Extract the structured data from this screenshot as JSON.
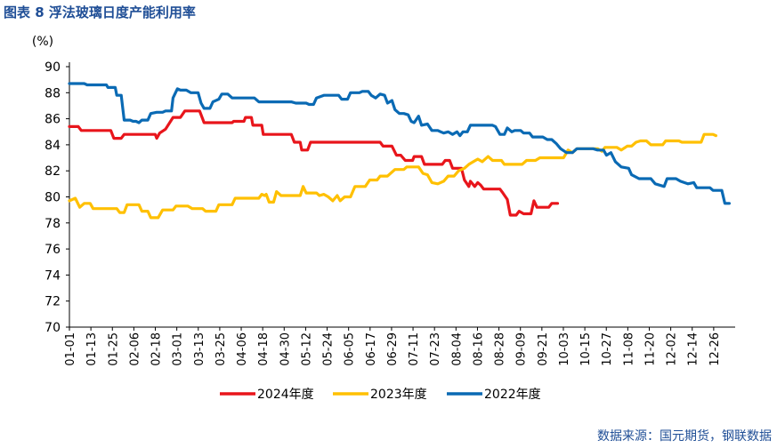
{
  "header": {
    "title": "图表 8  浮法玻璃日度产能利用率"
  },
  "footer": {
    "source": "数据来源：国元期货，钢联数据"
  },
  "chart_data": {
    "type": "line",
    "ylabel": "(%)",
    "ylim": [
      70,
      90
    ],
    "yticks": [
      70,
      72,
      74,
      76,
      78,
      80,
      82,
      84,
      86,
      88,
      90
    ],
    "categories": [
      "01-01",
      "01-13",
      "01-25",
      "02-06",
      "02-18",
      "03-01",
      "03-13",
      "03-25",
      "04-06",
      "04-18",
      "04-30",
      "05-12",
      "05-24",
      "06-05",
      "06-17",
      "06-29",
      "07-11",
      "07-23",
      "08-04",
      "08-16",
      "08-28",
      "09-09",
      "09-21",
      "10-03",
      "10-15",
      "10-27",
      "11-08",
      "11-20",
      "12-02",
      "12-14",
      "12-26"
    ],
    "legend_position": "bottom",
    "grid": false,
    "series": [
      {
        "name": "2024年度",
        "color": "#e8151b",
        "points": [
          [
            0,
            85.4
          ],
          [
            0.6,
            85.4
          ],
          [
            0.8,
            85.1
          ],
          [
            2.8,
            85.1
          ],
          [
            3,
            84.5
          ],
          [
            3.5,
            84.5
          ],
          [
            3.7,
            84.8
          ],
          [
            5.8,
            84.8
          ],
          [
            5.9,
            84.5
          ],
          [
            6.1,
            84.9
          ],
          [
            6.5,
            85.2
          ],
          [
            7,
            86.1
          ],
          [
            7.5,
            86.1
          ],
          [
            7.8,
            86.6
          ],
          [
            8.8,
            86.6
          ],
          [
            9.1,
            85.7
          ],
          [
            11,
            85.7
          ],
          [
            11.1,
            85.8
          ],
          [
            11.8,
            85.8
          ],
          [
            11.9,
            86.1
          ],
          [
            12.3,
            86.1
          ],
          [
            12.4,
            85.5
          ],
          [
            13,
            85.5
          ],
          [
            13.1,
            84.8
          ],
          [
            15,
            84.8
          ],
          [
            15.2,
            84.2
          ],
          [
            15.6,
            84.2
          ],
          [
            15.7,
            83.6
          ],
          [
            16.1,
            83.6
          ],
          [
            16.3,
            84.2
          ],
          [
            21,
            84.2
          ],
          [
            21.2,
            83.9
          ],
          [
            21.8,
            83.9
          ],
          [
            22.1,
            83.2
          ],
          [
            22.4,
            83.2
          ],
          [
            22.7,
            82.8
          ],
          [
            23.2,
            82.8
          ],
          [
            23.3,
            83.1
          ],
          [
            23.8,
            83.1
          ],
          [
            24,
            82.5
          ],
          [
            25.2,
            82.5
          ],
          [
            25.4,
            82.8
          ],
          [
            25.7,
            82.8
          ],
          [
            25.9,
            82.2
          ],
          [
            26.5,
            82.2
          ],
          [
            26.7,
            81.3
          ],
          [
            27,
            80.8
          ],
          [
            27.1,
            81.2
          ],
          [
            27.4,
            80.8
          ],
          [
            27.6,
            81.1
          ],
          [
            27.8,
            80.9
          ],
          [
            28,
            80.6
          ],
          [
            29.1,
            80.6
          ],
          [
            29.3,
            80.3
          ],
          [
            29.6,
            79.8
          ],
          [
            29.8,
            78.6
          ],
          [
            30.2,
            78.6
          ],
          [
            30.4,
            78.9
          ],
          [
            30.7,
            78.7
          ],
          [
            31.2,
            78.7
          ],
          [
            31.4,
            79.7
          ],
          [
            31.6,
            79.2
          ],
          [
            32.4,
            79.2
          ],
          [
            32.6,
            79.5
          ],
          [
            33,
            79.5
          ]
        ]
      },
      {
        "name": "2023年度",
        "color": "#ffc000",
        "points": [
          [
            0,
            79.7
          ],
          [
            0.4,
            79.9
          ],
          [
            0.7,
            79.2
          ],
          [
            1,
            79.5
          ],
          [
            1.4,
            79.5
          ],
          [
            1.6,
            79.1
          ],
          [
            3.2,
            79.1
          ],
          [
            3.4,
            78.8
          ],
          [
            3.7,
            78.8
          ],
          [
            3.9,
            79.4
          ],
          [
            4.7,
            79.4
          ],
          [
            4.9,
            78.9
          ],
          [
            5.3,
            78.9
          ],
          [
            5.5,
            78.4
          ],
          [
            6,
            78.4
          ],
          [
            6.3,
            79.0
          ],
          [
            7,
            79.0
          ],
          [
            7.2,
            79.3
          ],
          [
            8,
            79.3
          ],
          [
            8.3,
            79.1
          ],
          [
            9,
            79.1
          ],
          [
            9.2,
            78.9
          ],
          [
            9.9,
            78.9
          ],
          [
            10.1,
            79.4
          ],
          [
            11,
            79.4
          ],
          [
            11.2,
            79.9
          ],
          [
            12.8,
            79.9
          ],
          [
            13,
            80.2
          ],
          [
            13.2,
            80.1
          ],
          [
            13.3,
            80.2
          ],
          [
            13.5,
            79.6
          ],
          [
            13.8,
            79.6
          ],
          [
            14,
            80.4
          ],
          [
            14.3,
            80.1
          ],
          [
            15.6,
            80.1
          ],
          [
            15.8,
            80.8
          ],
          [
            16,
            80.3
          ],
          [
            16.7,
            80.3
          ],
          [
            16.9,
            80.1
          ],
          [
            17.2,
            80.2
          ],
          [
            17.5,
            80.0
          ],
          [
            17.8,
            79.7
          ],
          [
            18.1,
            80.1
          ],
          [
            18.3,
            79.7
          ],
          [
            18.6,
            80.0
          ],
          [
            19,
            80.0
          ],
          [
            19.3,
            80.8
          ],
          [
            20,
            80.8
          ],
          [
            20.3,
            81.3
          ],
          [
            20.8,
            81.3
          ],
          [
            21,
            81.6
          ],
          [
            21.5,
            81.6
          ],
          [
            22,
            82.1
          ],
          [
            22.6,
            82.1
          ],
          [
            22.8,
            82.3
          ],
          [
            23.6,
            82.3
          ],
          [
            23.9,
            81.8
          ],
          [
            24.2,
            81.7
          ],
          [
            24.5,
            81.1
          ],
          [
            24.9,
            81.0
          ],
          [
            25.3,
            81.2
          ],
          [
            25.6,
            81.6
          ],
          [
            26,
            81.6
          ],
          [
            26.3,
            82.0
          ],
          [
            26.7,
            82.2
          ],
          [
            27,
            82.5
          ],
          [
            27.3,
            82.7
          ],
          [
            27.6,
            82.9
          ],
          [
            27.9,
            82.7
          ],
          [
            28.3,
            83.1
          ],
          [
            28.6,
            82.8
          ],
          [
            29.2,
            82.8
          ],
          [
            29.4,
            82.5
          ],
          [
            30.6,
            82.5
          ],
          [
            30.9,
            82.8
          ],
          [
            31.5,
            82.8
          ],
          [
            31.8,
            83.0
          ],
          [
            33.4,
            83.0
          ],
          [
            33.7,
            83.6
          ],
          [
            34,
            83.4
          ],
          [
            34.3,
            83.7
          ],
          [
            35.7,
            83.7
          ],
          [
            36,
            83.5
          ],
          [
            36.2,
            83.8
          ],
          [
            37,
            83.8
          ],
          [
            37.3,
            83.6
          ],
          [
            37.7,
            83.9
          ],
          [
            38,
            83.9
          ],
          [
            38.3,
            84.2
          ],
          [
            38.6,
            84.3
          ],
          [
            39,
            84.3
          ],
          [
            39.3,
            84.0
          ],
          [
            40.1,
            84.0
          ],
          [
            40.3,
            84.3
          ],
          [
            41.2,
            84.3
          ],
          [
            41.4,
            84.2
          ],
          [
            42.7,
            84.2
          ],
          [
            42.9,
            84.8
          ],
          [
            43.5,
            84.8
          ],
          [
            43.7,
            84.7
          ]
        ]
      },
      {
        "name": "2022年度",
        "color": "#0a6ab4",
        "points": [
          [
            0,
            88.7
          ],
          [
            1,
            88.7
          ],
          [
            1.2,
            88.6
          ],
          [
            2.5,
            88.6
          ],
          [
            2.6,
            88.4
          ],
          [
            3.1,
            88.4
          ],
          [
            3.2,
            87.8
          ],
          [
            3.5,
            87.8
          ],
          [
            3.7,
            85.9
          ],
          [
            4.1,
            85.9
          ],
          [
            4.3,
            85.8
          ],
          [
            4.5,
            85.8
          ],
          [
            4.7,
            85.7
          ],
          [
            4.9,
            85.9
          ],
          [
            5.3,
            85.9
          ],
          [
            5.5,
            86.4
          ],
          [
            5.9,
            86.5
          ],
          [
            6.3,
            86.5
          ],
          [
            6.5,
            86.6
          ],
          [
            6.9,
            86.6
          ],
          [
            7,
            87.6
          ],
          [
            7.3,
            88.3
          ],
          [
            7.5,
            88.2
          ],
          [
            7.9,
            88.2
          ],
          [
            8.2,
            88.0
          ],
          [
            8.7,
            88.0
          ],
          [
            8.9,
            87.2
          ],
          [
            9.1,
            86.8
          ],
          [
            9.5,
            86.8
          ],
          [
            9.7,
            87.3
          ],
          [
            10.1,
            87.5
          ],
          [
            10.3,
            87.9
          ],
          [
            10.7,
            87.9
          ],
          [
            11,
            87.6
          ],
          [
            12.5,
            87.6
          ],
          [
            12.8,
            87.3
          ],
          [
            15,
            87.3
          ],
          [
            15.3,
            87.2
          ],
          [
            16,
            87.2
          ],
          [
            16.2,
            87.1
          ],
          [
            16.5,
            87.1
          ],
          [
            16.7,
            87.6
          ],
          [
            17.2,
            87.8
          ],
          [
            18.2,
            87.8
          ],
          [
            18.4,
            87.5
          ],
          [
            18.8,
            87.5
          ],
          [
            19,
            88.0
          ],
          [
            19.6,
            88.0
          ],
          [
            19.8,
            88.1
          ],
          [
            20.2,
            88.1
          ],
          [
            20.4,
            87.8
          ],
          [
            20.7,
            87.6
          ],
          [
            21,
            87.9
          ],
          [
            21.3,
            87.8
          ],
          [
            21.5,
            87.2
          ],
          [
            21.8,
            87.4
          ],
          [
            22,
            86.7
          ],
          [
            22.3,
            86.4
          ],
          [
            22.6,
            86.4
          ],
          [
            22.9,
            86.3
          ],
          [
            23.1,
            85.8
          ],
          [
            23.3,
            85.7
          ],
          [
            23.6,
            86.2
          ],
          [
            23.8,
            85.5
          ],
          [
            24.2,
            85.6
          ],
          [
            24.5,
            85.1
          ],
          [
            24.9,
            85.1
          ],
          [
            25.1,
            85.0
          ],
          [
            25.3,
            84.9
          ],
          [
            25.6,
            85.0
          ],
          [
            25.9,
            84.8
          ],
          [
            26.2,
            85.0
          ],
          [
            26.4,
            84.7
          ],
          [
            26.6,
            85.0
          ],
          [
            26.9,
            85.0
          ],
          [
            27.1,
            85.5
          ],
          [
            28.6,
            85.5
          ],
          [
            28.8,
            85.4
          ],
          [
            29.1,
            84.8
          ],
          [
            29.4,
            84.8
          ],
          [
            29.6,
            85.3
          ],
          [
            29.9,
            85.0
          ],
          [
            30.1,
            85.1
          ],
          [
            30.5,
            85.1
          ],
          [
            30.7,
            84.9
          ],
          [
            31.1,
            84.9
          ],
          [
            31.3,
            84.6
          ],
          [
            32,
            84.6
          ],
          [
            32.3,
            84.4
          ],
          [
            32.6,
            84.4
          ],
          [
            32.9,
            84.1
          ],
          [
            33.2,
            83.7
          ],
          [
            33.6,
            83.4
          ],
          [
            34,
            83.4
          ],
          [
            34.3,
            83.7
          ],
          [
            35.4,
            83.7
          ],
          [
            35.7,
            83.6
          ],
          [
            36.1,
            83.6
          ],
          [
            36.3,
            83.2
          ],
          [
            36.6,
            83.4
          ],
          [
            36.9,
            82.7
          ],
          [
            37.3,
            82.3
          ],
          [
            37.8,
            82.2
          ],
          [
            38,
            81.7
          ],
          [
            38.5,
            81.4
          ],
          [
            39.3,
            81.4
          ],
          [
            39.6,
            81.0
          ],
          [
            39.9,
            80.9
          ],
          [
            40.2,
            80.8
          ],
          [
            40.4,
            81.4
          ],
          [
            41,
            81.4
          ],
          [
            41.3,
            81.2
          ],
          [
            41.8,
            81.0
          ],
          [
            42.2,
            81.1
          ],
          [
            42.4,
            80.7
          ],
          [
            43.3,
            80.7
          ],
          [
            43.5,
            80.5
          ],
          [
            44.1,
            80.5
          ],
          [
            44.3,
            79.5
          ],
          [
            44.6,
            79.5
          ]
        ]
      }
    ]
  }
}
